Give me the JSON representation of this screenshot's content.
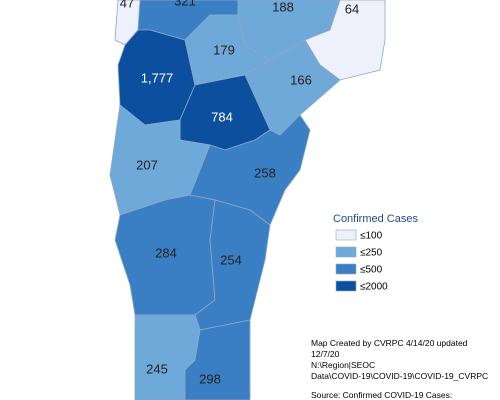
{
  "regions": [
    {
      "label": "47",
      "color": "#eef0fb"
    },
    {
      "label": "321",
      "color": "#3a7fc3"
    },
    {
      "label": "188",
      "color": "#6fa9d9"
    },
    {
      "label": "64",
      "color": "#eef0fb"
    },
    {
      "label": "1,777",
      "color": "#0c4f9e"
    },
    {
      "label": "179",
      "color": "#6fa9d9"
    },
    {
      "label": "166",
      "color": "#6fa9d9"
    },
    {
      "label": "784",
      "color": "#0c4f9e"
    },
    {
      "label": "207",
      "color": "#6fa9d9"
    },
    {
      "label": "258",
      "color": "#3a7fc3"
    },
    {
      "label": "284",
      "color": "#3a7fc3"
    },
    {
      "label": "254",
      "color": "#3a7fc3"
    },
    {
      "label": "245",
      "color": "#6fa9d9"
    },
    {
      "label": "298",
      "color": "#3a7fc3"
    }
  ],
  "legend": {
    "title": "Confirmed Cases",
    "items": [
      {
        "label": "≤100",
        "color": "#eef0fb"
      },
      {
        "label": "≤250",
        "color": "#6fa9d9"
      },
      {
        "label": "≤500",
        "color": "#3a7fc3"
      },
      {
        "label": "≤2000",
        "color": "#0c4f9e"
      }
    ]
  },
  "notes": [
    "Map Created by CVRPC 4/14/20 updated",
    "12/7/20",
    "N:\\Region|SEOC",
    "Data\\COVID-19\\COVID-19\\COVID-19_CVRPC",
    "Source: Confirmed COVID-19 Cases:"
  ]
}
